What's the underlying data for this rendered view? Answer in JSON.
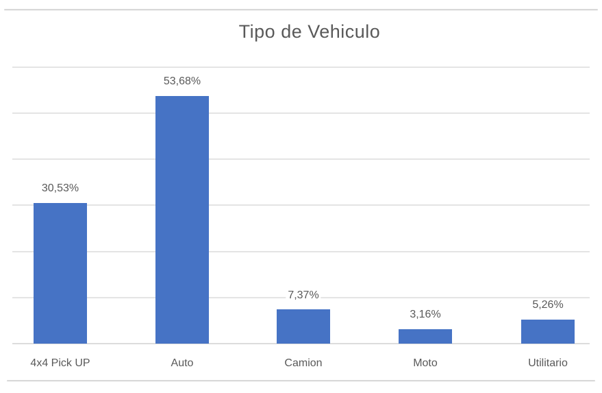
{
  "chart_data": {
    "type": "bar",
    "title": "Tipo de Vehiculo",
    "categories": [
      "4x4 Pick UP",
      "Auto",
      "Camion",
      "Moto",
      "Utilitario"
    ],
    "values": [
      30.53,
      53.68,
      7.37,
      3.16,
      5.26
    ],
    "data_labels": [
      "30,53%",
      "53,68%",
      "7,37%",
      "3,16%",
      "5,26%"
    ],
    "xlabel": "",
    "ylabel": "",
    "ylim": [
      0,
      60
    ],
    "gridline_step": 10,
    "grid": true,
    "legend": "none",
    "data_label_position": "outside-end",
    "colors": {
      "bar": "#4673C5",
      "title_text": "#595959",
      "label_text": "#595959",
      "gridline": "#E4E4E4",
      "axis_line": "#DCDCDC",
      "border_line": "#D8D8D8",
      "background": "#FFFFFF"
    }
  }
}
